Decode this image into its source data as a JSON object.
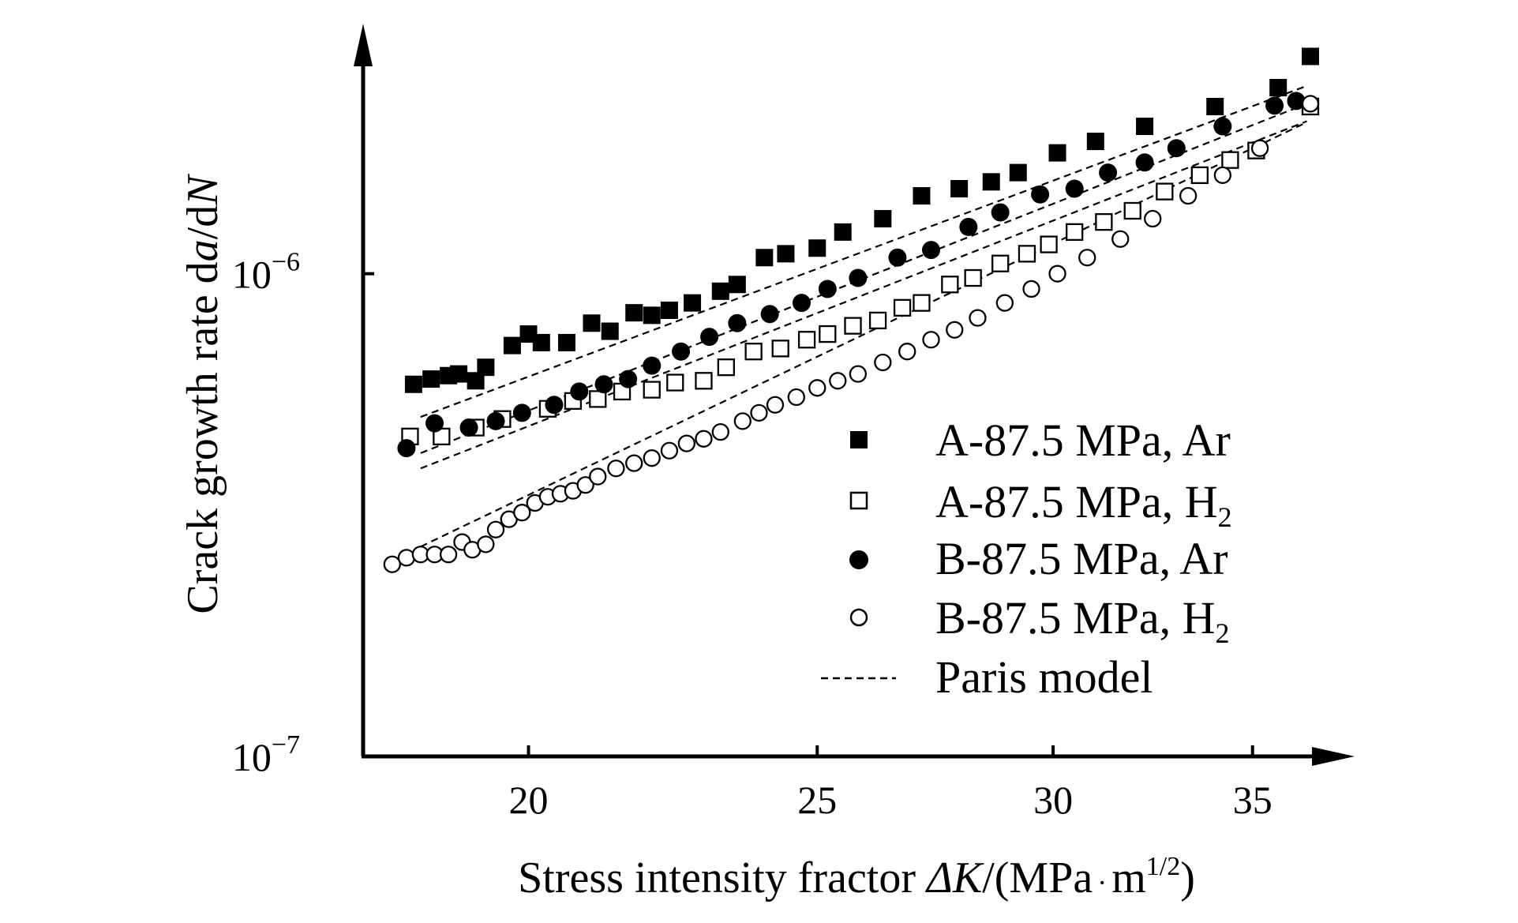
{
  "chart_data": {
    "type": "scatter",
    "title": "",
    "xlabel": {
      "text": "Stress intensity fractor ",
      "symbol": "ΔK",
      "units_open": "/(MPa",
      "dot": "·",
      "units_m": "m",
      "units_exp": "1/2",
      "units_close": ")"
    },
    "ylabel": {
      "text": "Crack growth rate d",
      "a": "a",
      "slash": "/d",
      "N": "N"
    },
    "x_ticks": [
      "20",
      "25",
      "30",
      "35"
    ],
    "x_tick_values": [
      20,
      25,
      30,
      35
    ],
    "y_ticks": [
      {
        "value": 1e-06,
        "base": "10",
        "exp": "−6"
      },
      {
        "value": 1e-07,
        "base": "10",
        "exp": "−7"
      }
    ],
    "xlim": [
      17.6,
      36.6
    ],
    "ylim_log": [
      1e-07,
      3e-06
    ],
    "xscale": "log",
    "yscale": "log",
    "grid": false,
    "legend_position": "lower-right",
    "series": [
      {
        "name": "A-87.5 MPa, Ar",
        "label_main": "A-87.5 MPa, Ar",
        "label_sub": "",
        "marker": "square-filled",
        "fit": {
          "x": [
            18.4,
            36.5
          ],
          "y": [
            5.05e-07,
            2.45e-06
          ]
        },
        "points": [
          [
            18.3,
            5.9e-07
          ],
          [
            18.55,
            6.05e-07
          ],
          [
            18.8,
            6.15e-07
          ],
          [
            18.95,
            6.2e-07
          ],
          [
            19.2,
            6e-07
          ],
          [
            19.35,
            6.4e-07
          ],
          [
            19.75,
            7.1e-07
          ],
          [
            20.0,
            7.5e-07
          ],
          [
            20.2,
            7.2e-07
          ],
          [
            20.6,
            7.2e-07
          ],
          [
            21.0,
            7.9e-07
          ],
          [
            21.3,
            7.6e-07
          ],
          [
            21.7,
            8.3e-07
          ],
          [
            22.0,
            8.2e-07
          ],
          [
            22.3,
            8.4e-07
          ],
          [
            22.7,
            8.7e-07
          ],
          [
            23.2,
            9.2e-07
          ],
          [
            23.5,
            9.5e-07
          ],
          [
            24.0,
            1.08e-06
          ],
          [
            24.4,
            1.1e-06
          ],
          [
            25.0,
            1.13e-06
          ],
          [
            25.5,
            1.22e-06
          ],
          [
            26.3,
            1.3e-06
          ],
          [
            27.1,
            1.45e-06
          ],
          [
            27.9,
            1.5e-06
          ],
          [
            28.6,
            1.55e-06
          ],
          [
            29.2,
            1.62e-06
          ],
          [
            30.1,
            1.78e-06
          ],
          [
            31.0,
            1.88e-06
          ],
          [
            32.2,
            2.02e-06
          ],
          [
            34.0,
            2.22e-06
          ],
          [
            35.7,
            2.43e-06
          ],
          [
            36.6,
            2.82e-06
          ]
        ]
      },
      {
        "name": "A-87.5 MPa, H₂",
        "label_main": "A-87.5 MPa, H",
        "label_sub": "2",
        "marker": "square-open",
        "fit": {
          "x": [
            18.4,
            36.5
          ],
          "y": [
            3.95e-07,
            2.07e-06
          ]
        },
        "points": [
          [
            18.25,
            4.6e-07
          ],
          [
            18.7,
            4.6e-07
          ],
          [
            19.2,
            4.8e-07
          ],
          [
            19.6,
            5e-07
          ],
          [
            20.3,
            5.25e-07
          ],
          [
            20.7,
            5.45e-07
          ],
          [
            21.1,
            5.5e-07
          ],
          [
            21.5,
            5.7e-07
          ],
          [
            22.0,
            5.75e-07
          ],
          [
            22.4,
            5.95e-07
          ],
          [
            22.9,
            6e-07
          ],
          [
            23.3,
            6.4e-07
          ],
          [
            23.8,
            6.9e-07
          ],
          [
            24.3,
            7e-07
          ],
          [
            24.8,
            7.3e-07
          ],
          [
            25.2,
            7.5e-07
          ],
          [
            25.7,
            7.8e-07
          ],
          [
            26.2,
            8e-07
          ],
          [
            26.7,
            8.5e-07
          ],
          [
            27.1,
            8.7e-07
          ],
          [
            27.7,
            9.5e-07
          ],
          [
            28.2,
            9.8e-07
          ],
          [
            28.8,
            1.05e-06
          ],
          [
            29.4,
            1.1e-06
          ],
          [
            29.9,
            1.15e-06
          ],
          [
            30.5,
            1.22e-06
          ],
          [
            31.2,
            1.28e-06
          ],
          [
            31.9,
            1.35e-06
          ],
          [
            32.7,
            1.48e-06
          ],
          [
            33.6,
            1.6e-06
          ],
          [
            34.4,
            1.72e-06
          ],
          [
            35.1,
            1.8e-06
          ],
          [
            36.6,
            2.22e-06
          ]
        ]
      },
      {
        "name": "B-87.5 MPa, Ar",
        "label_main": "B-87.5 MPa, Ar",
        "label_sub": "",
        "marker": "circle-filled",
        "fit": {
          "x": [
            18.4,
            36.5
          ],
          "y": [
            4.25e-07,
            2.25e-06
          ]
        },
        "points": [
          [
            18.2,
            4.35e-07
          ],
          [
            18.6,
            4.9e-07
          ],
          [
            19.1,
            4.8e-07
          ],
          [
            19.5,
            4.95e-07
          ],
          [
            19.9,
            5.15e-07
          ],
          [
            20.4,
            5.35e-07
          ],
          [
            20.8,
            5.7e-07
          ],
          [
            21.2,
            5.9e-07
          ],
          [
            21.6,
            6.05e-07
          ],
          [
            22.0,
            6.45e-07
          ],
          [
            22.5,
            6.9e-07
          ],
          [
            23.0,
            7.4e-07
          ],
          [
            23.5,
            7.9e-07
          ],
          [
            24.1,
            8.25e-07
          ],
          [
            24.7,
            8.7e-07
          ],
          [
            25.2,
            9.3e-07
          ],
          [
            25.8,
            9.8e-07
          ],
          [
            26.6,
            1.08e-06
          ],
          [
            27.3,
            1.12e-06
          ],
          [
            28.1,
            1.25e-06
          ],
          [
            28.8,
            1.34e-06
          ],
          [
            29.7,
            1.46e-06
          ],
          [
            30.5,
            1.5e-06
          ],
          [
            31.3,
            1.62e-06
          ],
          [
            32.2,
            1.7e-06
          ],
          [
            33.0,
            1.82e-06
          ],
          [
            34.2,
            2.02e-06
          ],
          [
            35.6,
            2.23e-06
          ],
          [
            36.2,
            2.28e-06
          ]
        ]
      },
      {
        "name": "B-87.5 MPa, H₂",
        "label_main": "B-87.5 MPa, H",
        "label_sub": "2",
        "marker": "circle-open",
        "fit": {
          "x": [
            18.4,
            36.5
          ],
          "y": [
            2.72e-07,
            2.06e-06
          ]
        },
        "points": [
          [
            18.0,
            2.5e-07
          ],
          [
            18.2,
            2.58e-07
          ],
          [
            18.4,
            2.62e-07
          ],
          [
            18.6,
            2.62e-07
          ],
          [
            18.8,
            2.62e-07
          ],
          [
            19.0,
            2.78e-07
          ],
          [
            19.15,
            2.68e-07
          ],
          [
            19.35,
            2.75e-07
          ],
          [
            19.5,
            2.95e-07
          ],
          [
            19.7,
            3.1e-07
          ],
          [
            19.9,
            3.2e-07
          ],
          [
            20.1,
            3.35e-07
          ],
          [
            20.3,
            3.45e-07
          ],
          [
            20.5,
            3.5e-07
          ],
          [
            20.7,
            3.55e-07
          ],
          [
            20.9,
            3.65e-07
          ],
          [
            21.1,
            3.8e-07
          ],
          [
            21.4,
            3.95e-07
          ],
          [
            21.7,
            4.05e-07
          ],
          [
            22.0,
            4.15e-07
          ],
          [
            22.3,
            4.3e-07
          ],
          [
            22.6,
            4.45e-07
          ],
          [
            22.9,
            4.55e-07
          ],
          [
            23.2,
            4.7e-07
          ],
          [
            23.6,
            4.95e-07
          ],
          [
            23.9,
            5.15e-07
          ],
          [
            24.2,
            5.35e-07
          ],
          [
            24.6,
            5.55e-07
          ],
          [
            25.0,
            5.8e-07
          ],
          [
            25.4,
            6e-07
          ],
          [
            25.8,
            6.2e-07
          ],
          [
            26.3,
            6.55e-07
          ],
          [
            26.8,
            6.9e-07
          ],
          [
            27.3,
            7.3e-07
          ],
          [
            27.8,
            7.65e-07
          ],
          [
            28.3,
            8.1e-07
          ],
          [
            28.9,
            8.7e-07
          ],
          [
            29.5,
            9.3e-07
          ],
          [
            30.1,
            1e-06
          ],
          [
            30.8,
            1.08e-06
          ],
          [
            31.6,
            1.18e-06
          ],
          [
            32.4,
            1.3e-06
          ],
          [
            33.3,
            1.45e-06
          ],
          [
            34.2,
            1.6e-06
          ],
          [
            35.2,
            1.82e-06
          ],
          [
            36.6,
            2.25e-06
          ]
        ]
      }
    ],
    "fit_legend": {
      "label": "Paris model",
      "style": "dashed"
    }
  }
}
